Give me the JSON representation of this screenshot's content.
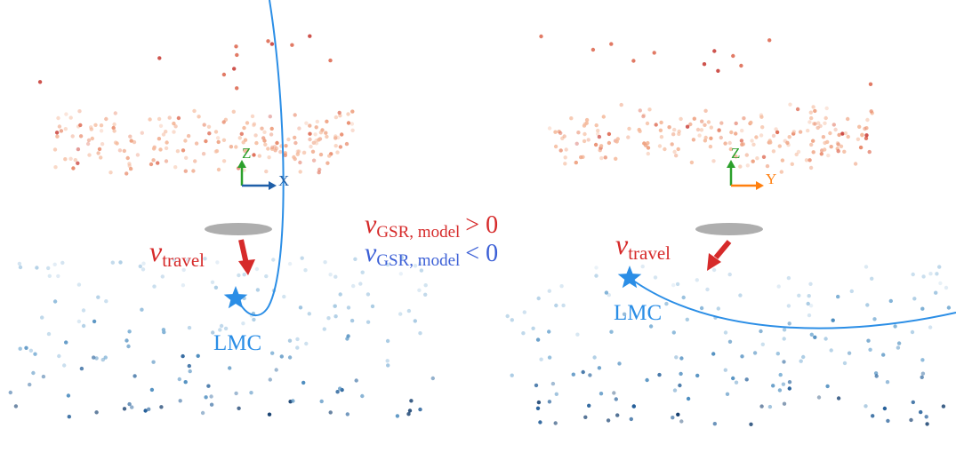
{
  "panels": [
    {
      "axes": {
        "up": "Z",
        "right": "X"
      },
      "velocity_label": {
        "symbol": "v",
        "subscript": "travel"
      },
      "object_label": "LMC"
    },
    {
      "axes": {
        "up": "Z",
        "right": "Y"
      },
      "velocity_label": {
        "symbol": "v",
        "subscript": "travel"
      },
      "object_label": "LMC"
    }
  ],
  "legend": [
    {
      "symbol": "v",
      "subscript": "GSR, model",
      "relation": "> 0"
    },
    {
      "symbol": "v",
      "subscript": "GSR, model",
      "relation": "< 0"
    }
  ]
}
